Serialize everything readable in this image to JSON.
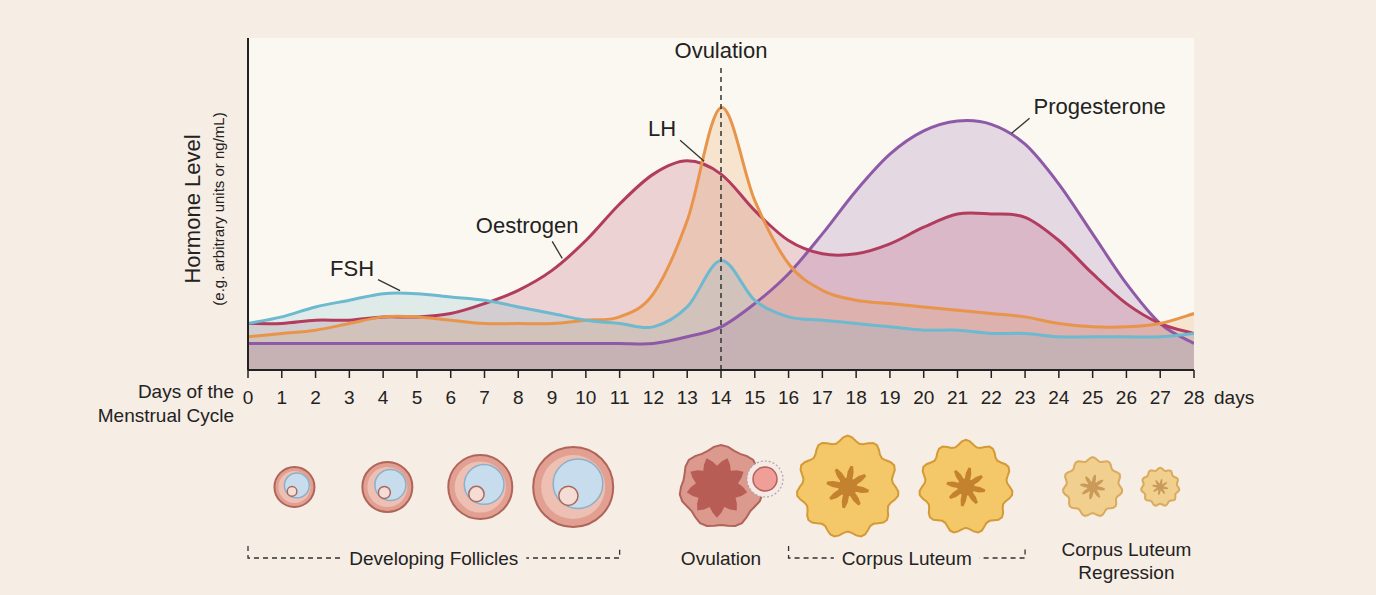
{
  "chart_data": {
    "type": "area",
    "ylabel": "Hormone Level",
    "ylabel_note": "(e.g. arbitrary units or ng/mL)",
    "xlabel": "Days of the Menstrual Cycle",
    "x_unit": "days",
    "x": [
      0,
      1,
      2,
      3,
      4,
      5,
      6,
      7,
      8,
      9,
      10,
      11,
      12,
      13,
      14,
      15,
      16,
      17,
      18,
      19,
      20,
      21,
      22,
      23,
      24,
      25,
      26,
      27,
      28
    ],
    "xlim": [
      0,
      28
    ],
    "xticks": [
      0,
      1,
      2,
      3,
      4,
      5,
      6,
      7,
      8,
      9,
      10,
      11,
      12,
      13,
      14,
      15,
      16,
      17,
      18,
      19,
      20,
      21,
      22,
      23,
      24,
      25,
      26,
      27,
      28
    ],
    "ylim": [
      0,
      100
    ],
    "tick_labels": "x",
    "series": [
      {
        "name": "FSH",
        "color": "#6db9cf",
        "values": [
          14,
          16,
          19,
          21,
          23,
          23,
          22,
          21,
          19,
          17,
          15,
          14,
          13,
          19,
          33,
          21,
          16,
          15,
          14,
          13,
          12,
          12,
          11,
          11,
          10,
          10,
          10,
          10,
          11
        ]
      },
      {
        "name": "LH",
        "color": "#e8944a",
        "values": [
          10,
          11,
          12,
          14,
          16,
          16,
          15,
          14,
          14,
          14,
          15,
          16,
          23,
          45,
          79,
          51,
          32,
          24,
          21,
          20,
          19,
          18,
          17,
          16,
          14,
          13,
          13,
          14,
          17
        ]
      },
      {
        "name": "Oestrogen",
        "color": "#b23c5e",
        "values": [
          14,
          14,
          15,
          15,
          16,
          16,
          17,
          20,
          24,
          30,
          39,
          50,
          59,
          63,
          59,
          48,
          39,
          35,
          35,
          38,
          43,
          47,
          47,
          46,
          39,
          29,
          20,
          14,
          11
        ]
      },
      {
        "name": "Progesterone",
        "color": "#8e5aa8",
        "values": [
          8,
          8,
          8,
          8,
          8,
          8,
          8,
          8,
          8,
          8,
          8,
          8,
          8,
          10,
          13,
          20,
          29,
          41,
          54,
          65,
          72,
          75,
          74,
          68,
          56,
          41,
          26,
          14,
          8
        ]
      }
    ],
    "annotations": [
      {
        "text": "Ovulation",
        "x": 14
      }
    ],
    "stages": [
      {
        "label": "Developing Follicles",
        "start": 0,
        "end": 11
      },
      {
        "label": "Ovulation",
        "start": 14,
        "end": 14
      },
      {
        "label": "Corpus Luteum",
        "start": 16,
        "end": 23
      },
      {
        "label": "Corpus Luteum Regression",
        "start": 24,
        "end": 28
      }
    ]
  }
}
